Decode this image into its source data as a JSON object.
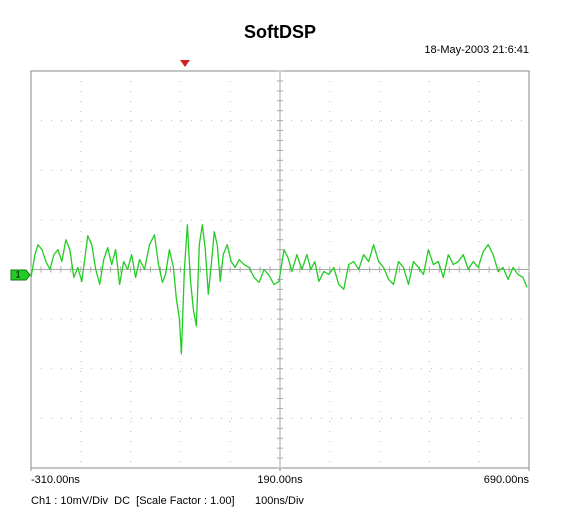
{
  "chart_data": {
    "type": "line",
    "title": "SoftDSP",
    "subtitle": "18-May-2003 21:6:41",
    "channel_marker": "1",
    "channel_info": "Ch1 : 10mV/Div  DC  [Scale Factor : 1.00]",
    "timebase": "100ns/Div",
    "color": "#22cc22",
    "xlim": [
      -310,
      690
    ],
    "xticks": [
      {
        "value": -310,
        "label": "-310.00ns"
      },
      {
        "value": 190,
        "label": "190.00ns"
      },
      {
        "value": 690,
        "label": "690.00ns"
      }
    ],
    "ylim": [
      -40,
      40
    ],
    "grid": true,
    "x": [
      -310,
      -302,
      -296,
      -288,
      -280,
      -272,
      -264,
      -256,
      -248,
      -240,
      -232,
      -224,
      -216,
      -208,
      -196,
      -188,
      -180,
      -172,
      -164,
      -156,
      -148,
      -140,
      -132,
      -124,
      -116,
      -108,
      -100,
      -92,
      -82,
      -72,
      -62,
      -54,
      -46,
      -40,
      -32,
      -24,
      -18,
      -12,
      -8,
      -2,
      4,
      10,
      16,
      22,
      28,
      34,
      40,
      46,
      52,
      58,
      64,
      70,
      76,
      84,
      92,
      100,
      108,
      118,
      128,
      138,
      148,
      158,
      168,
      178,
      188,
      198,
      206,
      214,
      224,
      234,
      244,
      252,
      260,
      268,
      278,
      288,
      298,
      308,
      318,
      328,
      338,
      348,
      358,
      368,
      378,
      388,
      398,
      408,
      418,
      428,
      438,
      448,
      458,
      468,
      478,
      488,
      498,
      508,
      518,
      528,
      538,
      548,
      558,
      568,
      578,
      588,
      598,
      608,
      618,
      628,
      638,
      648,
      658,
      668,
      678,
      686
    ],
    "values": [
      -1.6,
      3,
      5,
      4,
      1.6,
      0,
      3,
      4,
      1.6,
      6,
      4,
      -1.6,
      0.4,
      -2.4,
      6.8,
      5,
      0,
      -3,
      2,
      4.4,
      1,
      4,
      -3,
      1.6,
      0,
      3,
      -1.6,
      2,
      0,
      5,
      7,
      1,
      -2.6,
      -1,
      4,
      0.4,
      -6,
      -10,
      -17,
      0,
      9,
      -2,
      -8,
      -11.4,
      5,
      9,
      4,
      -5,
      1,
      7.6,
      5,
      -2.4,
      3,
      5,
      1.6,
      0.4,
      2,
      1,
      0.4,
      -1.6,
      -2.6,
      0,
      -1.2,
      -3,
      -2.4,
      4,
      2.4,
      -0.4,
      3,
      0,
      3,
      0,
      1.6,
      -2.4,
      -0.4,
      -1,
      0.4,
      -3,
      -4,
      1,
      1.6,
      0,
      3,
      1.6,
      5,
      1.6,
      0.4,
      -2,
      -3,
      1.6,
      0.4,
      -3,
      1.6,
      0.4,
      -1,
      4,
      1,
      1.6,
      -1.6,
      3,
      1,
      1.6,
      3,
      0,
      1.6,
      0.4,
      3.6,
      5,
      3,
      -0.4,
      0.4,
      -2,
      0.4,
      -1,
      -1.6,
      -3.6
    ]
  }
}
